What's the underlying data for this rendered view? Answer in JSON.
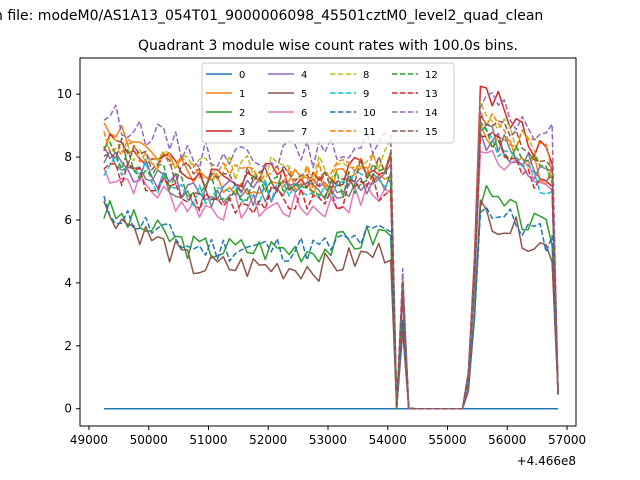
{
  "suptitle": "n file: modeM0/AS1A13_054T01_9000006098_45501cztM0_level2_quad_clean",
  "chart_data": {
    "type": "line",
    "title": "Quadrant 3 module wise count rates with 100.0s bins.",
    "xlabel": "",
    "ylabel": "",
    "x_offset_label": "+4.466e8",
    "xlim": [
      48850,
      57150
    ],
    "ylim": [
      -0.55,
      11.15
    ],
    "x_ticks": [
      49000,
      50000,
      51000,
      52000,
      53000,
      54000,
      55000,
      56000,
      57000
    ],
    "x_tick_labels": [
      "49000",
      "50000",
      "51000",
      "52000",
      "53000",
      "54000",
      "55000",
      "56000",
      "57000"
    ],
    "y_ticks": [
      0,
      2,
      4,
      6,
      8,
      10
    ],
    "y_tick_labels": [
      "0",
      "2",
      "4",
      "6",
      "8",
      "10"
    ],
    "grid": false,
    "legend_placement": "top-center",
    "legend_columns": 4,
    "gap": {
      "start": 54350,
      "end": 55250
    },
    "x_start": 49250,
    "x_end": 56850,
    "x_step": 100,
    "series": [
      {
        "name": "0",
        "color": "#1f77b4",
        "dash": "solid",
        "start_val": 0.0,
        "plateau1": 0.0,
        "plateau2": 0.0,
        "end_val": 0.0
      },
      {
        "name": "1",
        "color": "#ff7f0e",
        "dash": "solid",
        "start_val": 9.2,
        "plateau1": 7.2,
        "plateau2": 8.8,
        "end_val": 7.4
      },
      {
        "name": "2",
        "color": "#2ca02c",
        "dash": "solid",
        "start_val": 6.3,
        "plateau1": 5.1,
        "plateau2": 6.8,
        "end_val": 5.5
      },
      {
        "name": "3",
        "color": "#d62728",
        "dash": "solid",
        "start_val": 8.6,
        "plateau1": 7.4,
        "plateau2": 10.4,
        "end_val": 7.8
      },
      {
        "name": "4",
        "color": "#9467bd",
        "dash": "solid",
        "start_val": 8.0,
        "plateau1": 6.9,
        "plateau2": 8.7,
        "end_val": 7.3
      },
      {
        "name": "5",
        "color": "#8c564b",
        "dash": "solid",
        "start_val": 6.4,
        "plateau1": 4.5,
        "plateau2": 6.3,
        "end_val": 5.0
      },
      {
        "name": "6",
        "color": "#e377c2",
        "dash": "solid",
        "start_val": 7.6,
        "plateau1": 6.4,
        "plateau2": 8.5,
        "end_val": 7.0
      },
      {
        "name": "7",
        "color": "#7f7f7f",
        "dash": "solid",
        "start_val": 7.9,
        "plateau1": 6.8,
        "plateau2": 8.9,
        "end_val": 7.2
      },
      {
        "name": "8",
        "color": "#bcbd22",
        "dash": "dashed",
        "start_val": 8.5,
        "plateau1": 7.6,
        "plateau2": 9.6,
        "end_val": 7.7
      },
      {
        "name": "9",
        "color": "#17becf",
        "dash": "dashed",
        "start_val": 7.8,
        "plateau1": 6.9,
        "plateau2": 8.6,
        "end_val": 7.0
      },
      {
        "name": "10",
        "color": "#1f77b4",
        "dash": "dashed",
        "start_val": 6.4,
        "plateau1": 5.1,
        "plateau2": 6.5,
        "end_val": 5.3
      },
      {
        "name": "11",
        "color": "#ff7f0e",
        "dash": "dashed",
        "start_val": 8.6,
        "plateau1": 7.4,
        "plateau2": 9.5,
        "end_val": 7.9
      },
      {
        "name": "12",
        "color": "#2ca02c",
        "dash": "dashed",
        "start_val": 8.2,
        "plateau1": 7.0,
        "plateau2": 8.9,
        "end_val": 7.3
      },
      {
        "name": "13",
        "color": "#d62728",
        "dash": "dashed",
        "start_val": 7.7,
        "plateau1": 6.6,
        "plateau2": 9.1,
        "end_val": 6.9
      },
      {
        "name": "14",
        "color": "#9467bd",
        "dash": "dashed",
        "start_val": 9.4,
        "plateau1": 8.1,
        "plateau2": 9.8,
        "end_val": 8.6
      },
      {
        "name": "15",
        "color": "#8c564b",
        "dash": "dashed",
        "start_val": 8.4,
        "plateau1": 7.3,
        "plateau2": 9.3,
        "end_val": 7.8
      }
    ]
  }
}
